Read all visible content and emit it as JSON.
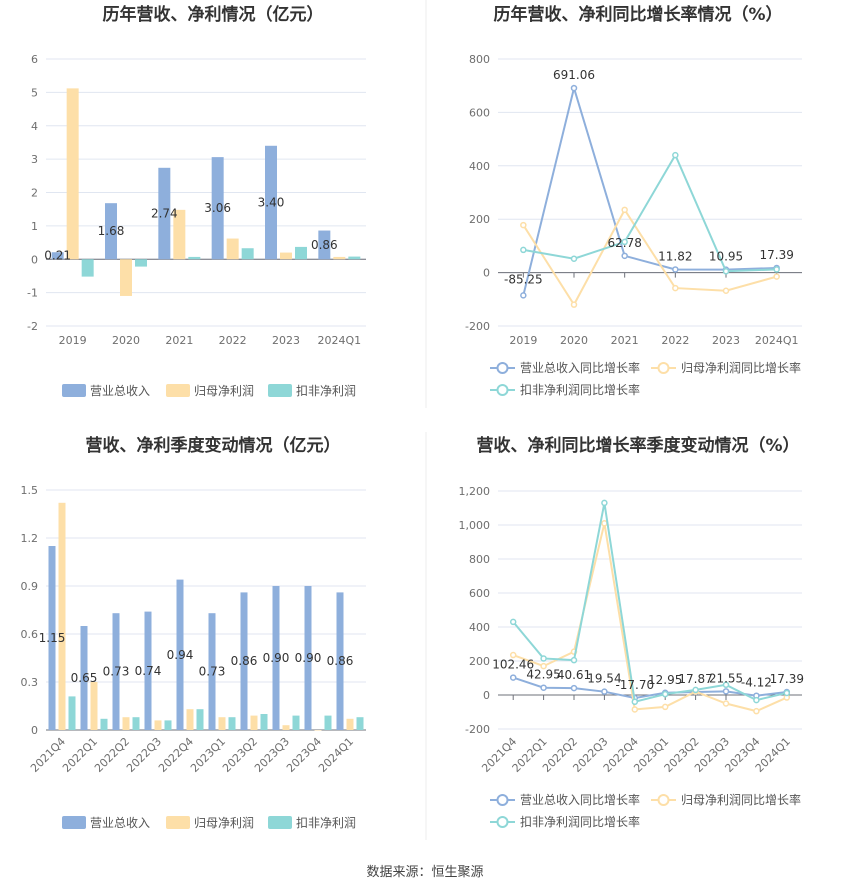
{
  "source": "数据来源：恒生聚源",
  "colors": {
    "revenue": "#8eafdc",
    "net_profit": "#fddfa8",
    "deducted": "#8ed7d7",
    "revenue_line": "#8eafdc",
    "net_profit_line": "#fddfa8",
    "deducted_line": "#8ed7d7"
  },
  "chart_data": [
    {
      "type": "bar",
      "title": "历年营收、净利情况（亿元）",
      "categories": [
        "2019",
        "2020",
        "2021",
        "2022",
        "2023",
        "2024Q1"
      ],
      "yticks": [
        "6",
        "5",
        "4",
        "3",
        "2",
        "1",
        "0",
        "-1",
        "-2"
      ],
      "ylim": [
        -2,
        6
      ],
      "series": [
        {
          "name": "营业总收入",
          "values": [
            0.21,
            1.68,
            2.74,
            3.06,
            3.4,
            0.86
          ],
          "labels": [
            "0.21",
            "1.68",
            "2.74",
            "3.06",
            "3.40",
            "0.86"
          ]
        },
        {
          "name": "归母净利润",
          "values": [
            5.12,
            -1.1,
            1.48,
            0.62,
            0.2,
            0.07
          ]
        },
        {
          "name": "扣非净利润",
          "values": [
            -0.52,
            -0.22,
            0.07,
            0.33,
            0.37,
            0.08
          ]
        }
      ],
      "legend": "bottom"
    },
    {
      "type": "line",
      "title": "历年营收、净利同比增长率情况（%）",
      "categories": [
        "2019",
        "2020",
        "2021",
        "2022",
        "2023",
        "2024Q1"
      ],
      "yticks": [
        "800",
        "600",
        "400",
        "200",
        "0",
        "-200"
      ],
      "ylim": [
        -200,
        800
      ],
      "series": [
        {
          "name": "营业总收入同比增长率",
          "values": [
            -85.25,
            691.06,
            62.78,
            11.82,
            10.95,
            17.39
          ],
          "labels": [
            "-85.25",
            "691.06",
            "62.78",
            "11.82",
            "10.95",
            "17.39"
          ]
        },
        {
          "name": "归母净利润同比增长率",
          "values": [
            178,
            -120,
            235,
            -58,
            -68,
            -15
          ]
        },
        {
          "name": "扣非净利润同比增长率",
          "values": [
            85,
            52,
            115,
            440,
            5,
            12
          ]
        }
      ],
      "legend": "bottom"
    },
    {
      "type": "bar",
      "title": "营收、净利季度变动情况（亿元）",
      "categories": [
        "2021Q4",
        "2022Q1",
        "2022Q2",
        "2022Q3",
        "2022Q4",
        "2023Q1",
        "2023Q2",
        "2023Q3",
        "2023Q4",
        "2024Q1"
      ],
      "yticks": [
        "1.5",
        "1.2",
        "0.9",
        "0.6",
        "0.3",
        "0"
      ],
      "ylim": [
        0,
        1.5
      ],
      "series": [
        {
          "name": "营业总收入",
          "values": [
            1.15,
            0.65,
            0.73,
            0.74,
            0.94,
            0.73,
            0.86,
            0.9,
            0.9,
            0.86
          ],
          "labels": [
            "1.15",
            "0.65",
            "0.73",
            "0.74",
            "0.94",
            "0.73",
            "0.86",
            "0.90",
            "0.90",
            "0.86"
          ]
        },
        {
          "name": "归母净利润",
          "values": [
            1.42,
            0.3,
            0.08,
            0.06,
            0.13,
            0.08,
            0.09,
            0.03,
            0.0,
            0.07
          ]
        },
        {
          "name": "扣非净利润",
          "values": [
            0.21,
            0.07,
            0.08,
            0.06,
            0.13,
            0.08,
            0.1,
            0.09,
            0.09,
            0.08
          ]
        }
      ],
      "legend": "bottom"
    },
    {
      "type": "line",
      "title": "营收、净利同比增长率季度变动情况（%）",
      "categories": [
        "2021Q4",
        "2022Q1",
        "2022Q2",
        "2022Q3",
        "2022Q4",
        "2023Q1",
        "2023Q2",
        "2023Q3",
        "2023Q4",
        "2024Q1"
      ],
      "yticks": [
        "1,200",
        "1,000",
        "800",
        "600",
        "400",
        "200",
        "0",
        "-200"
      ],
      "ylim": [
        -200,
        1200
      ],
      "series": [
        {
          "name": "营业总收入同比增长率",
          "values": [
            102.46,
            42.95,
            40.61,
            19.54,
            -17.7,
            12.95,
            17.87,
            21.55,
            -4.12,
            17.39
          ],
          "labels": [
            "102.46",
            "42.95",
            "40.61",
            "19.54",
            "-17.70",
            "12.95",
            "17.87",
            "21.55",
            "-4.12",
            "17.39"
          ]
        },
        {
          "name": "归母净利润同比增长率",
          "values": [
            235,
            170,
            255,
            1010,
            -85,
            -70,
            20,
            -50,
            -95,
            -15
          ]
        },
        {
          "name": "扣非净利润同比增长率",
          "values": [
            430,
            215,
            205,
            1130,
            -40,
            5,
            30,
            60,
            -30,
            12
          ]
        }
      ],
      "legend": "bottom"
    }
  ]
}
